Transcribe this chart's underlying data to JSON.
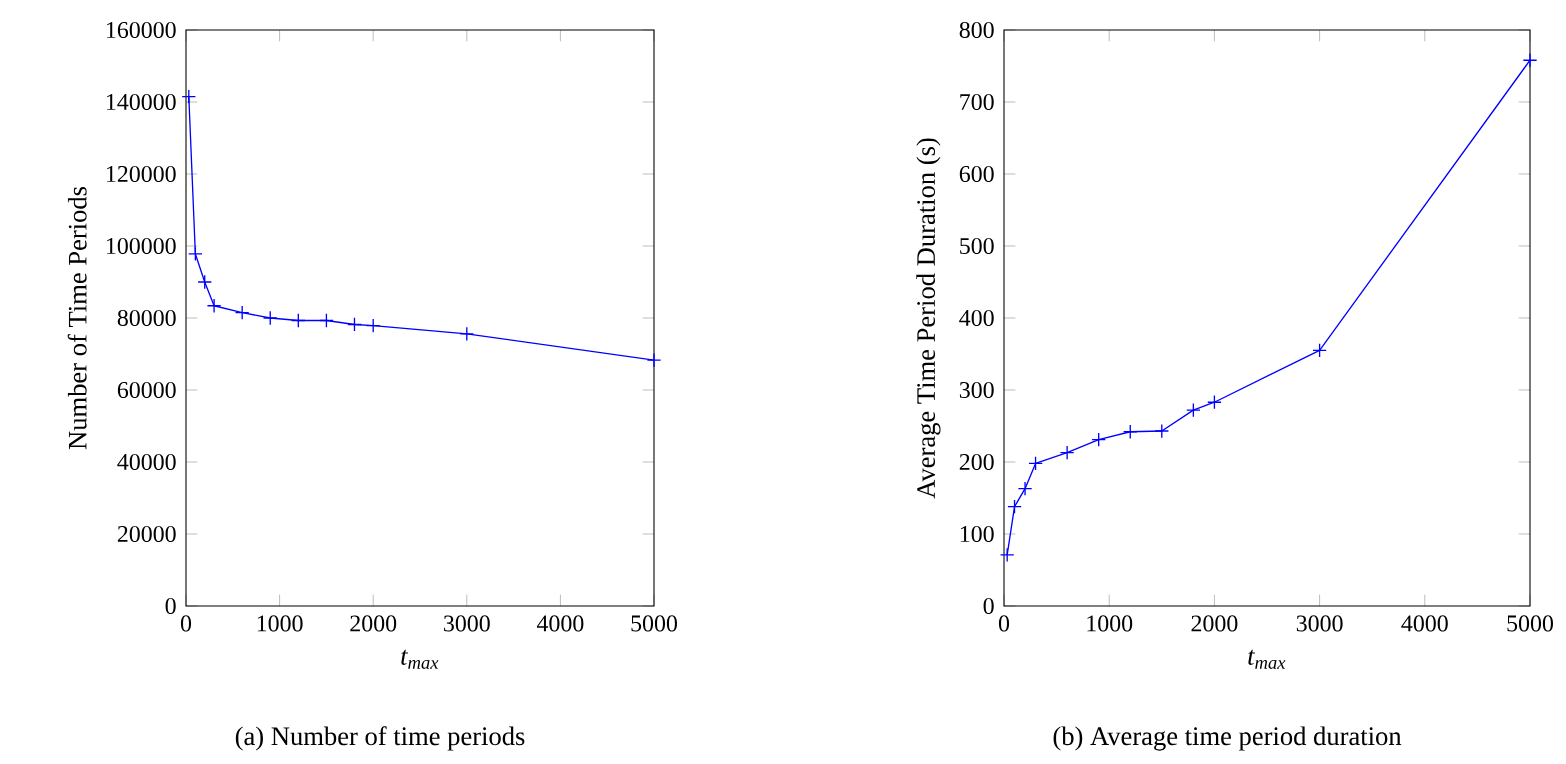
{
  "chart_data": [
    {
      "type": "line",
      "xlabel": "t$_{max}$",
      "ylabel": "Number of Time Periods",
      "annotations": [
        "(a) Number of time periods"
      ],
      "marker": "cross",
      "grid": false,
      "xlim": [
        0,
        5000
      ],
      "xticks": [
        0,
        1000,
        2000,
        3000,
        4000,
        5000
      ],
      "ylim": [
        0,
        160000
      ],
      "yticks": [
        0,
        20000,
        40000,
        60000,
        80000,
        100000,
        120000,
        140000,
        160000
      ],
      "series": [
        {
          "color": "#0000ff",
          "x": [
            30,
            100,
            200,
            300,
            600,
            900,
            1200,
            1500,
            1800,
            2000,
            3000,
            5000
          ],
          "values": [
            141500,
            97800,
            90000,
            83400,
            81500,
            80000,
            79300,
            79300,
            78200,
            77900,
            75600,
            68300
          ]
        }
      ]
    },
    {
      "type": "line",
      "xlabel": "t$_{max}$",
      "ylabel": "Average Time Period Duration (s)",
      "annotations": [
        "(b) Average time period duration"
      ],
      "marker": "cross",
      "grid": false,
      "xlim": [
        0,
        5000
      ],
      "xticks": [
        0,
        1000,
        2000,
        3000,
        4000,
        5000
      ],
      "ylim": [
        0,
        800
      ],
      "yticks": [
        0,
        100,
        200,
        300,
        400,
        500,
        600,
        700,
        800
      ],
      "series": [
        {
          "color": "#0000ff",
          "x": [
            30,
            100,
            200,
            300,
            600,
            900,
            1200,
            1500,
            1800,
            2000,
            3000,
            5000
          ],
          "values": [
            71,
            138,
            163,
            198,
            213,
            231,
            242,
            243,
            272,
            283,
            355,
            758
          ]
        }
      ]
    }
  ]
}
